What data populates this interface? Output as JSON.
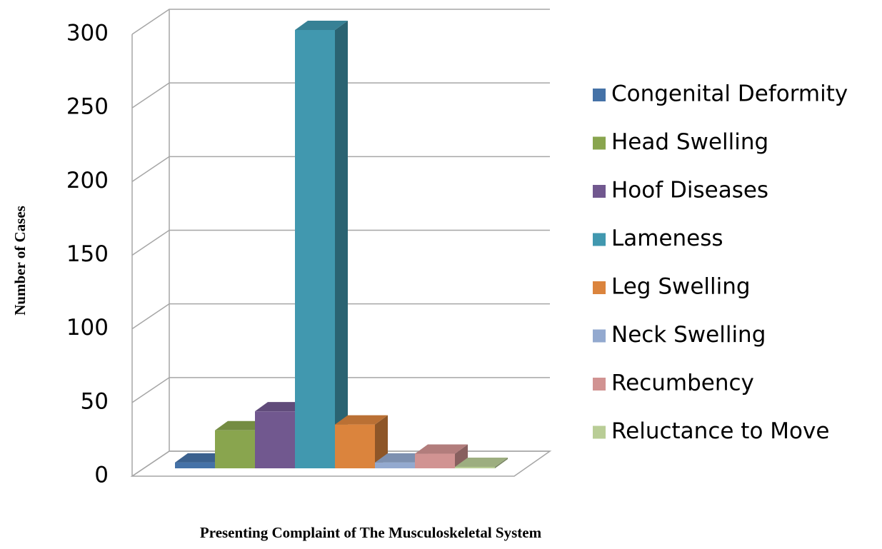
{
  "chart_data": {
    "type": "bar3d",
    "x_label": "Presenting Complaint of The Musculoskeletal System",
    "y_label": "Number of Cases",
    "ylim": [
      0,
      300
    ],
    "yticks": [
      0,
      50,
      100,
      150,
      200,
      250,
      300
    ],
    "grid": true,
    "legend": "right",
    "series": [
      {
        "name": "Congenital Deformity",
        "color": "#4572a7",
        "values": [
          4
        ]
      },
      {
        "name": "Head Swelling",
        "color": "#89a54e",
        "values": [
          26
        ]
      },
      {
        "name": "Hoof Diseases",
        "color": "#71588f",
        "values": [
          39
        ]
      },
      {
        "name": "Lameness",
        "color": "#4198af",
        "values": [
          300
        ]
      },
      {
        "name": "Leg Swelling",
        "color": "#db843d",
        "values": [
          30
        ]
      },
      {
        "name": "Neck Swelling",
        "color": "#93a9cf",
        "values": [
          4
        ]
      },
      {
        "name": "Recumbency",
        "color": "#d19392",
        "values": [
          10
        ]
      },
      {
        "name": "Reluctance to Move",
        "color": "#b9cd96",
        "values": [
          1
        ]
      }
    ]
  }
}
